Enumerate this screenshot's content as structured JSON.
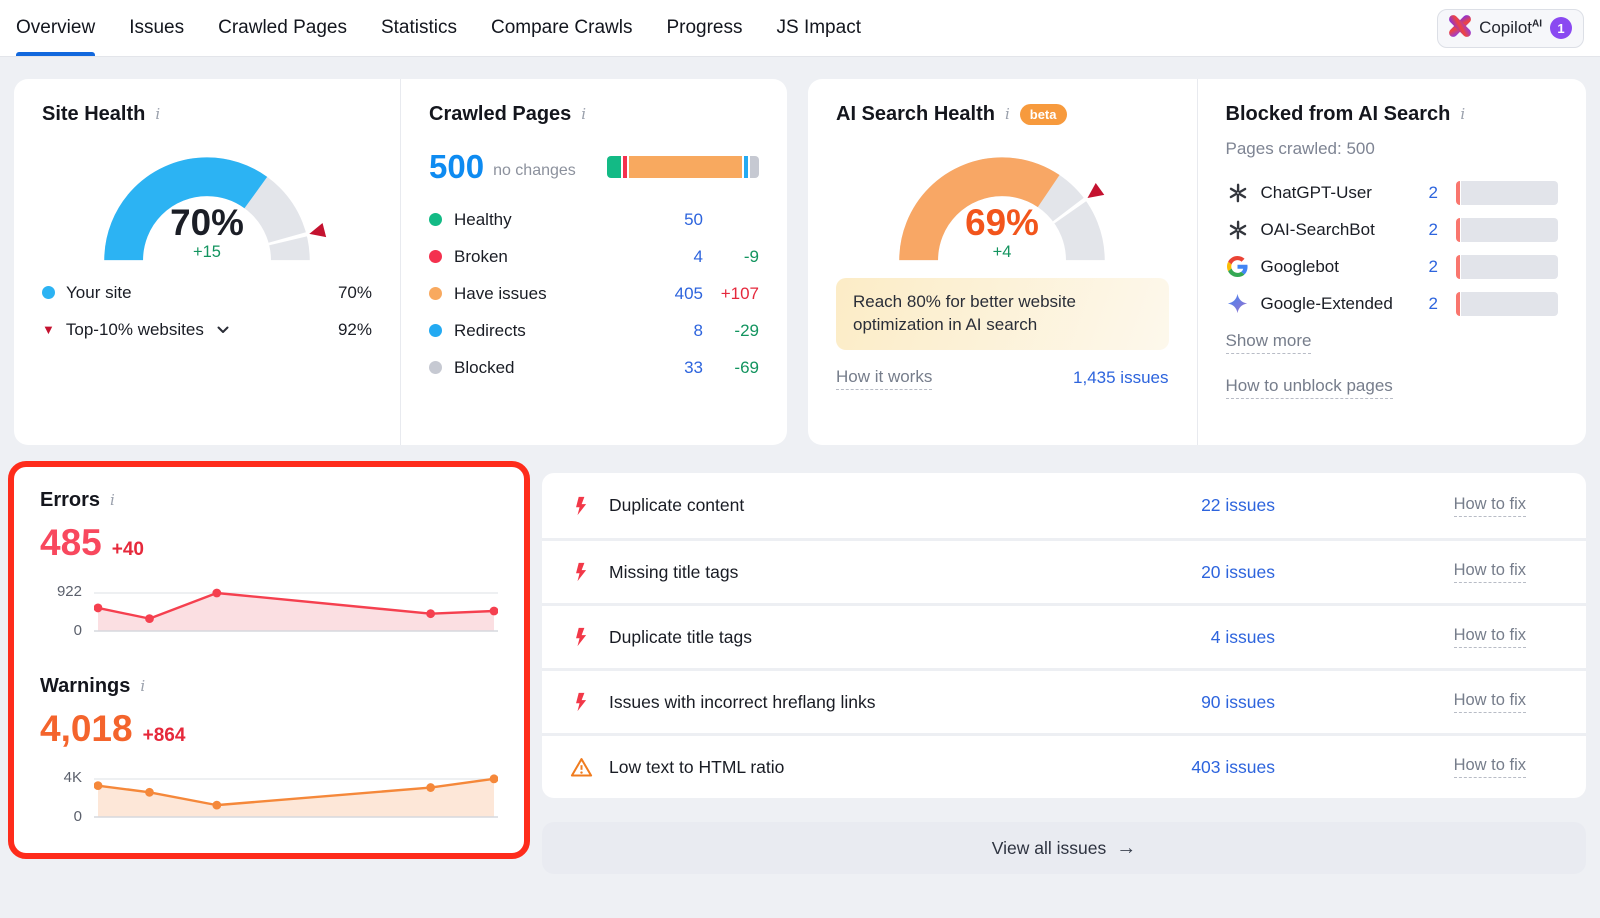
{
  "nav": {
    "tabs": [
      {
        "label": "Overview",
        "active": true
      },
      {
        "label": "Issues",
        "active": false
      },
      {
        "label": "Crawled Pages",
        "active": false
      },
      {
        "label": "Statistics",
        "active": false
      },
      {
        "label": "Compare Crawls",
        "active": false
      },
      {
        "label": "Progress",
        "active": false
      },
      {
        "label": "JS Impact",
        "active": false
      }
    ],
    "copilot": {
      "label": "Copilot",
      "sup": "AI",
      "badge": "1"
    }
  },
  "site_health": {
    "title": "Site Health",
    "percent": 70,
    "percent_label": "70%",
    "delta": "+15",
    "benchmark": 92,
    "arc_color": "#2cb3f3",
    "value_color": "#1b1e26",
    "legend": [
      {
        "marker": "blue-dot",
        "label": "Your site",
        "value": "70%",
        "chevron": false
      },
      {
        "marker": "red-triangle-down",
        "label": "Top-10% websites",
        "value": "92%",
        "chevron": true
      }
    ]
  },
  "crawled_pages": {
    "title": "Crawled Pages",
    "total": "500",
    "total_note": "no changes",
    "rows": [
      {
        "label": "Healthy",
        "value": "50",
        "delta": "",
        "delta_color": "",
        "color": "#13ba85"
      },
      {
        "label": "Broken",
        "value": "4",
        "delta": "-9",
        "delta_color": "#13945f",
        "color": "#f4314e"
      },
      {
        "label": "Have issues",
        "value": "405",
        "delta": "+107",
        "delta_color": "#e5283c",
        "color": "#f8a95f"
      },
      {
        "label": "Redirects",
        "value": "8",
        "delta": "-29",
        "delta_color": "#13945f",
        "color": "#23aaf2"
      },
      {
        "label": "Blocked",
        "value": "33",
        "delta": "-69",
        "delta_color": "#13945f",
        "color": "#c6c9d2"
      }
    ]
  },
  "ai_search_health": {
    "title": "AI Search Health",
    "beta_label": "beta",
    "percent": 69,
    "percent_label": "69%",
    "delta": "+4",
    "benchmark": 80,
    "arc_color": "#f8a765",
    "value_color": "#f2551c",
    "note": "Reach 80% for better website optimization in AI search",
    "how_it_works": "How it works",
    "issues_link": "1,435 issues"
  },
  "blocked_ai": {
    "title": "Blocked from AI Search",
    "pages_crawled": "Pages crawled: 500",
    "rows": [
      {
        "icon": "openai-icon",
        "name": "ChatGPT-User",
        "count": "2"
      },
      {
        "icon": "openai-icon",
        "name": "OAI-SearchBot",
        "count": "2"
      },
      {
        "icon": "google-icon",
        "name": "Googlebot",
        "count": "2"
      },
      {
        "icon": "gemini-icon",
        "name": "Google-Extended",
        "count": "2"
      }
    ],
    "show_more": "Show more",
    "how_to_unblock": "How to unblock pages"
  },
  "errors": {
    "title": "Errors",
    "value": "485",
    "delta": "+40",
    "axis_max": "922",
    "axis_min": "0",
    "value_color": "#f8485e",
    "line_color": "#f5404f",
    "fill_color": "#fbdfe2",
    "trend": {
      "x": [
        0,
        0.13,
        0.3,
        0.84,
        1
      ],
      "values": [
        560,
        300,
        922,
        420,
        485
      ],
      "y_max": 922
    }
  },
  "warnings": {
    "title": "Warnings",
    "value": "4,018",
    "delta": "+864",
    "axis_max": "4K",
    "axis_min": "0",
    "value_color": "#f4642c",
    "line_color": "#f5883a",
    "fill_color": "#fde7d8",
    "trend": {
      "x": [
        0,
        0.13,
        0.3,
        0.84,
        1
      ],
      "values": [
        3300,
        2600,
        1250,
        3100,
        4018
      ],
      "y_max": 4000
    }
  },
  "issues_panel": {
    "rows": [
      {
        "icon": "error-bolt-icon",
        "label": "Duplicate content",
        "count_link": "22 issues",
        "fix_link": "How to fix"
      },
      {
        "icon": "error-bolt-icon",
        "label": "Missing title tags",
        "count_link": "20 issues",
        "fix_link": "How to fix"
      },
      {
        "icon": "error-bolt-icon",
        "label": "Duplicate title tags",
        "count_link": "4 issues",
        "fix_link": "How to fix"
      },
      {
        "icon": "error-bolt-icon",
        "label": "Issues with incorrect hreflang links",
        "count_link": "90 issues",
        "fix_link": "How to fix"
      },
      {
        "icon": "warning-triangle-icon",
        "label": "Low text to HTML ratio",
        "count_link": "403 issues",
        "fix_link": "How to fix"
      }
    ],
    "view_all_label": "View all issues",
    "arrow": "→"
  },
  "colors": {
    "accent_blue": "#1268dd",
    "link_blue": "#2d64dd",
    "bright_blue": "#0e8bf1",
    "green_delta": "#13945f",
    "red_delta": "#e6293b",
    "benchmark_marker": "#c4122f",
    "gauge_track": "#e3e5ea",
    "highlight_border": "#fe2c1b"
  }
}
